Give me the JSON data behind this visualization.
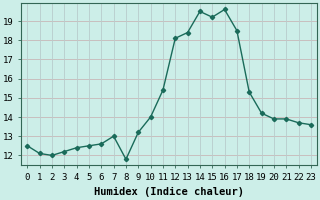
{
  "x": [
    0,
    1,
    2,
    3,
    4,
    5,
    6,
    7,
    8,
    9,
    10,
    11,
    12,
    13,
    14,
    15,
    16,
    17,
    18,
    19,
    20,
    21,
    22,
    23
  ],
  "y": [
    12.5,
    12.1,
    12.0,
    12.2,
    12.4,
    12.5,
    12.6,
    13.0,
    11.8,
    13.2,
    14.0,
    15.4,
    18.1,
    18.4,
    19.5,
    19.2,
    19.6,
    18.5,
    15.3,
    14.2,
    13.9,
    13.9,
    13.7,
    13.6
  ],
  "line_color": "#1a6b5a",
  "marker": "D",
  "marker_size": 2.2,
  "bg_color": "#cceee8",
  "grid_color_y": "#c8b8b8",
  "grid_color_x": "#b8cccc",
  "xlabel": "Humidex (Indice chaleur)",
  "xlabel_fontsize": 7.5,
  "ylabel_ticks": [
    12,
    13,
    14,
    15,
    16,
    17,
    18,
    19
  ],
  "xlim": [
    -0.5,
    23.5
  ],
  "ylim": [
    11.5,
    19.95
  ],
  "xtick_labels": [
    "0",
    "1",
    "2",
    "3",
    "4",
    "5",
    "6",
    "7",
    "8",
    "9",
    "10",
    "11",
    "12",
    "13",
    "14",
    "15",
    "16",
    "17",
    "18",
    "19",
    "20",
    "21",
    "22",
    "23"
  ],
  "tick_fontsize": 6.5
}
